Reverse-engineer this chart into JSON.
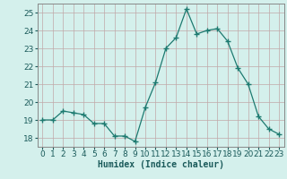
{
  "x": [
    0,
    1,
    2,
    3,
    4,
    5,
    6,
    7,
    8,
    9,
    10,
    11,
    12,
    13,
    14,
    15,
    16,
    17,
    18,
    19,
    20,
    21,
    22,
    23
  ],
  "y": [
    19.0,
    19.0,
    19.5,
    19.4,
    19.3,
    18.8,
    18.8,
    18.1,
    18.1,
    17.8,
    19.7,
    21.1,
    23.0,
    23.6,
    25.2,
    23.8,
    24.0,
    24.1,
    23.4,
    21.9,
    21.0,
    19.2,
    18.5,
    18.2
  ],
  "xlabel": "Humidex (Indice chaleur)",
  "ylim": [
    17.5,
    25.5
  ],
  "xlim": [
    -0.5,
    23.5
  ],
  "yticks": [
    18,
    19,
    20,
    21,
    22,
    23,
    24,
    25
  ],
  "xticks": [
    0,
    1,
    2,
    3,
    4,
    5,
    6,
    7,
    8,
    9,
    10,
    11,
    12,
    13,
    14,
    15,
    16,
    17,
    18,
    19,
    20,
    21,
    22,
    23
  ],
  "line_color": "#1d7a70",
  "marker_color": "#1d7a70",
  "bg_color": "#d4f0ec",
  "plot_bg_color": "#d4f0ec",
  "grid_color": "#c0a8a8",
  "spine_color": "#888888",
  "label_color": "#1a5a5a",
  "tick_label_color": "#1a5a5a",
  "xlabel_fontsize": 7,
  "tick_fontsize": 6.5
}
